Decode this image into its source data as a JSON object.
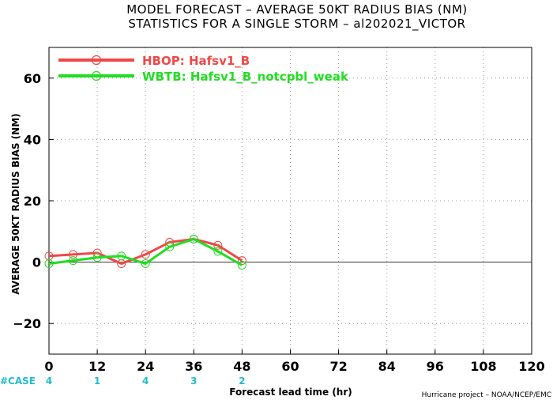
{
  "header": {
    "title_line1": "MODEL FORECAST – AVERAGE 50KT RADIUS BIAS (NM)",
    "title_line2": "STATISTICS FOR A SINGLE STORM – al202021_VICTOR"
  },
  "footer": {
    "case_label": "#CASE",
    "credit": "Hurricane project – NOAA/NCEP/EMC"
  },
  "chart_data": {
    "type": "line",
    "xlabel": "Forecast lead time (hr)",
    "ylabel": "AVERAGE 50KT RADIUS BIAS (NM)",
    "xlim": [
      0,
      120
    ],
    "ylim": [
      -30,
      70
    ],
    "x_ticks": [
      0,
      12,
      24,
      36,
      48,
      60,
      72,
      84,
      96,
      108,
      120
    ],
    "y_ticks": [
      -20,
      0,
      20,
      40,
      60
    ],
    "grid": true,
    "legend_position": "top-left",
    "zero_line": true,
    "series": [
      {
        "name": "HBOP: Hafsv1_B",
        "color": "#f04848",
        "x": [
          0,
          6,
          12,
          18,
          24,
          30,
          36,
          42,
          48
        ],
        "y": [
          2,
          2.5,
          3,
          -0.5,
          2.5,
          6.5,
          7.5,
          5.5,
          0.5
        ]
      },
      {
        "name": "WBTB: Hafsv1_B_notcpbl_weak",
        "color": "#22dd22",
        "x": [
          0,
          6,
          12,
          18,
          24,
          30,
          36,
          42,
          48
        ],
        "y": [
          -0.5,
          0.5,
          1.5,
          2,
          -0.5,
          5,
          7.5,
          3.5,
          -1
        ]
      }
    ],
    "cases": [
      {
        "x": 0,
        "count": "4"
      },
      {
        "x": 12,
        "count": "1"
      },
      {
        "x": 24,
        "count": "4"
      },
      {
        "x": 36,
        "count": "3"
      },
      {
        "x": 48,
        "count": "2"
      }
    ],
    "case_color": "#22bbcc"
  }
}
